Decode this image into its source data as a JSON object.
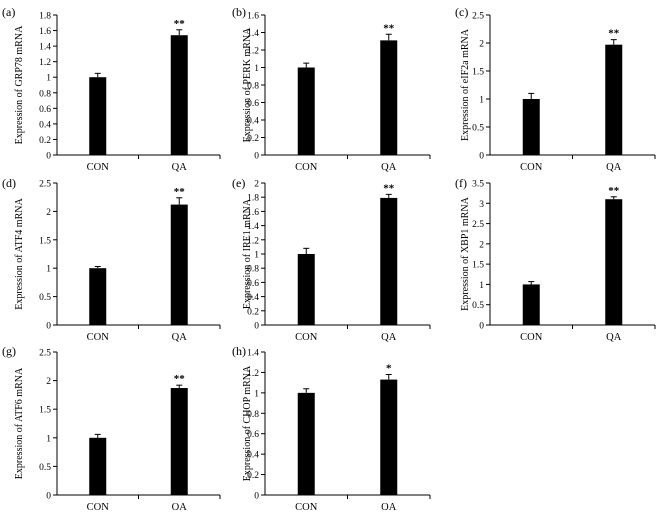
{
  "chart_data": [
    {
      "type": "bar",
      "panel_label": "(a)",
      "categories": [
        "CON",
        "QA"
      ],
      "values": [
        1.0,
        1.54
      ],
      "errors": [
        0.05,
        0.07
      ],
      "significance": [
        "",
        "**"
      ],
      "ylabel": "Expression of GRP78 mRNA",
      "ylim": [
        0,
        1.8
      ],
      "yticks": [
        "0",
        "0.2",
        "0.4",
        "0.6",
        "0.8",
        "1",
        "1.2",
        "1.4",
        "1.6",
        "1.8"
      ],
      "bar_color": "#000000",
      "grid": false
    },
    {
      "type": "bar",
      "panel_label": "(b)",
      "categories": [
        "CON",
        "QA"
      ],
      "values": [
        1.0,
        1.31
      ],
      "errors": [
        0.05,
        0.07
      ],
      "significance": [
        "",
        "**"
      ],
      "ylabel": "Expression of PERK mRNA",
      "ylim": [
        0,
        1.6
      ],
      "yticks": [
        "0",
        "0.2",
        "0.4",
        "0.6",
        "0.8",
        "1",
        "1.2",
        "1.4",
        "1.6"
      ],
      "bar_color": "#000000",
      "grid": false
    },
    {
      "type": "bar",
      "panel_label": "(c)",
      "categories": [
        "CON",
        "QA"
      ],
      "values": [
        1.0,
        1.97
      ],
      "errors": [
        0.1,
        0.09
      ],
      "significance": [
        "",
        "**"
      ],
      "ylabel": "Expression of eIF2a mRNA",
      "ylim": [
        0,
        2.5
      ],
      "yticks": [
        "0",
        "0.5",
        "1",
        "1.5",
        "2",
        "2.5"
      ],
      "bar_color": "#000000",
      "grid": false
    },
    {
      "type": "bar",
      "panel_label": "(d)",
      "categories": [
        "CON",
        "QA"
      ],
      "values": [
        1.0,
        2.12
      ],
      "errors": [
        0.03,
        0.12
      ],
      "significance": [
        "",
        "**"
      ],
      "ylabel": "Expression of ATF4 mRNA",
      "ylim": [
        0,
        2.5
      ],
      "yticks": [
        "0",
        "0.5",
        "1",
        "1.5",
        "2",
        "2.5"
      ],
      "bar_color": "#000000",
      "grid": false
    },
    {
      "type": "bar",
      "panel_label": "(e)",
      "categories": [
        "CON",
        "QA"
      ],
      "values": [
        1.0,
        1.79
      ],
      "errors": [
        0.08,
        0.05
      ],
      "significance": [
        "",
        "**"
      ],
      "ylabel": "Expression of IRE1 mRNA",
      "ylim": [
        0,
        2
      ],
      "yticks": [
        "0",
        "0.2",
        "0.4",
        "0.6",
        "0.8",
        "1",
        "1.2",
        "1.4",
        "1.6",
        "1.8",
        "2"
      ],
      "bar_color": "#000000",
      "grid": false
    },
    {
      "type": "bar",
      "panel_label": "(f)",
      "categories": [
        "CON",
        "QA"
      ],
      "values": [
        1.0,
        3.1
      ],
      "errors": [
        0.07,
        0.06
      ],
      "significance": [
        "",
        "**"
      ],
      "ylabel": "Expression of XBP1 mRNA",
      "ylim": [
        0,
        3.5
      ],
      "yticks": [
        "0",
        "0.5",
        "1",
        "1.5",
        "2",
        "2.5",
        "3",
        "3.5"
      ],
      "bar_color": "#000000",
      "grid": false
    },
    {
      "type": "bar",
      "panel_label": "(g)",
      "categories": [
        "CON",
        "QA"
      ],
      "values": [
        1.0,
        1.87
      ],
      "errors": [
        0.06,
        0.05
      ],
      "significance": [
        "",
        "**"
      ],
      "ylabel": "Expression of ATF6 mRNA",
      "ylim": [
        0,
        2.5
      ],
      "yticks": [
        "0",
        "0.5",
        "1",
        "1.5",
        "2",
        "2.5"
      ],
      "bar_color": "#000000",
      "grid": false
    },
    {
      "type": "bar",
      "panel_label": "(h)",
      "categories": [
        "CON",
        "QA"
      ],
      "values": [
        1.0,
        1.13
      ],
      "errors": [
        0.04,
        0.05
      ],
      "significance": [
        "",
        "*"
      ],
      "ylabel": "Expression of CHOP mRNA",
      "ylim": [
        0,
        1.4
      ],
      "yticks": [
        "0",
        "0.2",
        "0.4",
        "0.6",
        "0.8",
        "1",
        "1.2",
        "1.4"
      ],
      "bar_color": "#000000",
      "grid": false
    }
  ]
}
